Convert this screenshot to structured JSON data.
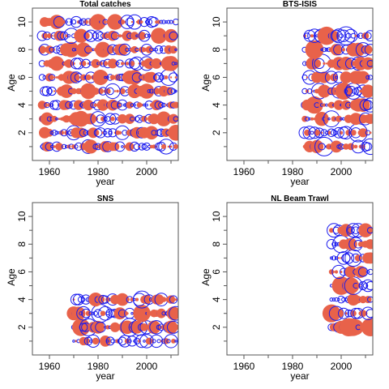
{
  "chart_data": [
    {
      "type": "scatter",
      "title": "Total catches",
      "xlabel": "year",
      "ylabel": "Age",
      "xlim": [
        1953,
        2013
      ],
      "ylim": [
        0,
        11
      ],
      "x_ticks": [
        "1960",
        "1980",
        "2000"
      ],
      "y_ticks": [
        "2",
        "4",
        "6",
        "8",
        "10"
      ],
      "encoding": "bubble residuals: filled red = positive, open blue = negative",
      "years": [
        1957,
        2012
      ],
      "ages": [
        1,
        2,
        3,
        4,
        5,
        6,
        7,
        8,
        9,
        10
      ],
      "colors": {
        "positive": "#e8624a",
        "negative": "#1a1aee"
      }
    },
    {
      "type": "scatter",
      "title": "BTS-ISIS",
      "xlabel": "year",
      "ylabel": "Age",
      "xlim": [
        1953,
        2013
      ],
      "ylim": [
        0,
        11
      ],
      "x_ticks": [
        "1960",
        "1980",
        "2000"
      ],
      "y_ticks": [
        "2",
        "4",
        "6",
        "8",
        "10"
      ],
      "years": [
        1985,
        2012
      ],
      "ages": [
        1,
        2,
        3,
        4,
        5,
        6,
        7,
        8,
        9
      ],
      "colors": {
        "positive": "#e8624a",
        "negative": "#1a1aee"
      }
    },
    {
      "type": "scatter",
      "title": "SNS",
      "xlabel": "year",
      "ylabel": "Age",
      "xlim": [
        1953,
        2013
      ],
      "ylim": [
        0,
        11
      ],
      "x_ticks": [
        "1960",
        "1980",
        "2000"
      ],
      "y_ticks": [
        "2",
        "4",
        "6",
        "8",
        "10"
      ],
      "years": [
        1970,
        2012
      ],
      "ages": [
        1,
        2,
        3,
        4
      ],
      "colors": {
        "positive": "#e8624a",
        "negative": "#1a1aee"
      }
    },
    {
      "type": "scatter",
      "title": "NL Beam Trawl",
      "xlabel": "year",
      "ylabel": "Age",
      "xlim": [
        1953,
        2013
      ],
      "ylim": [
        0,
        11
      ],
      "x_ticks": [
        "1960",
        "1980",
        "2000"
      ],
      "y_ticks": [
        "2",
        "4",
        "6",
        "8",
        "10"
      ],
      "years": [
        1996,
        2012
      ],
      "ages": [
        2,
        3,
        4,
        5,
        6,
        7,
        8,
        9
      ],
      "colors": {
        "positive": "#e8624a",
        "negative": "#1a1aee"
      }
    }
  ]
}
